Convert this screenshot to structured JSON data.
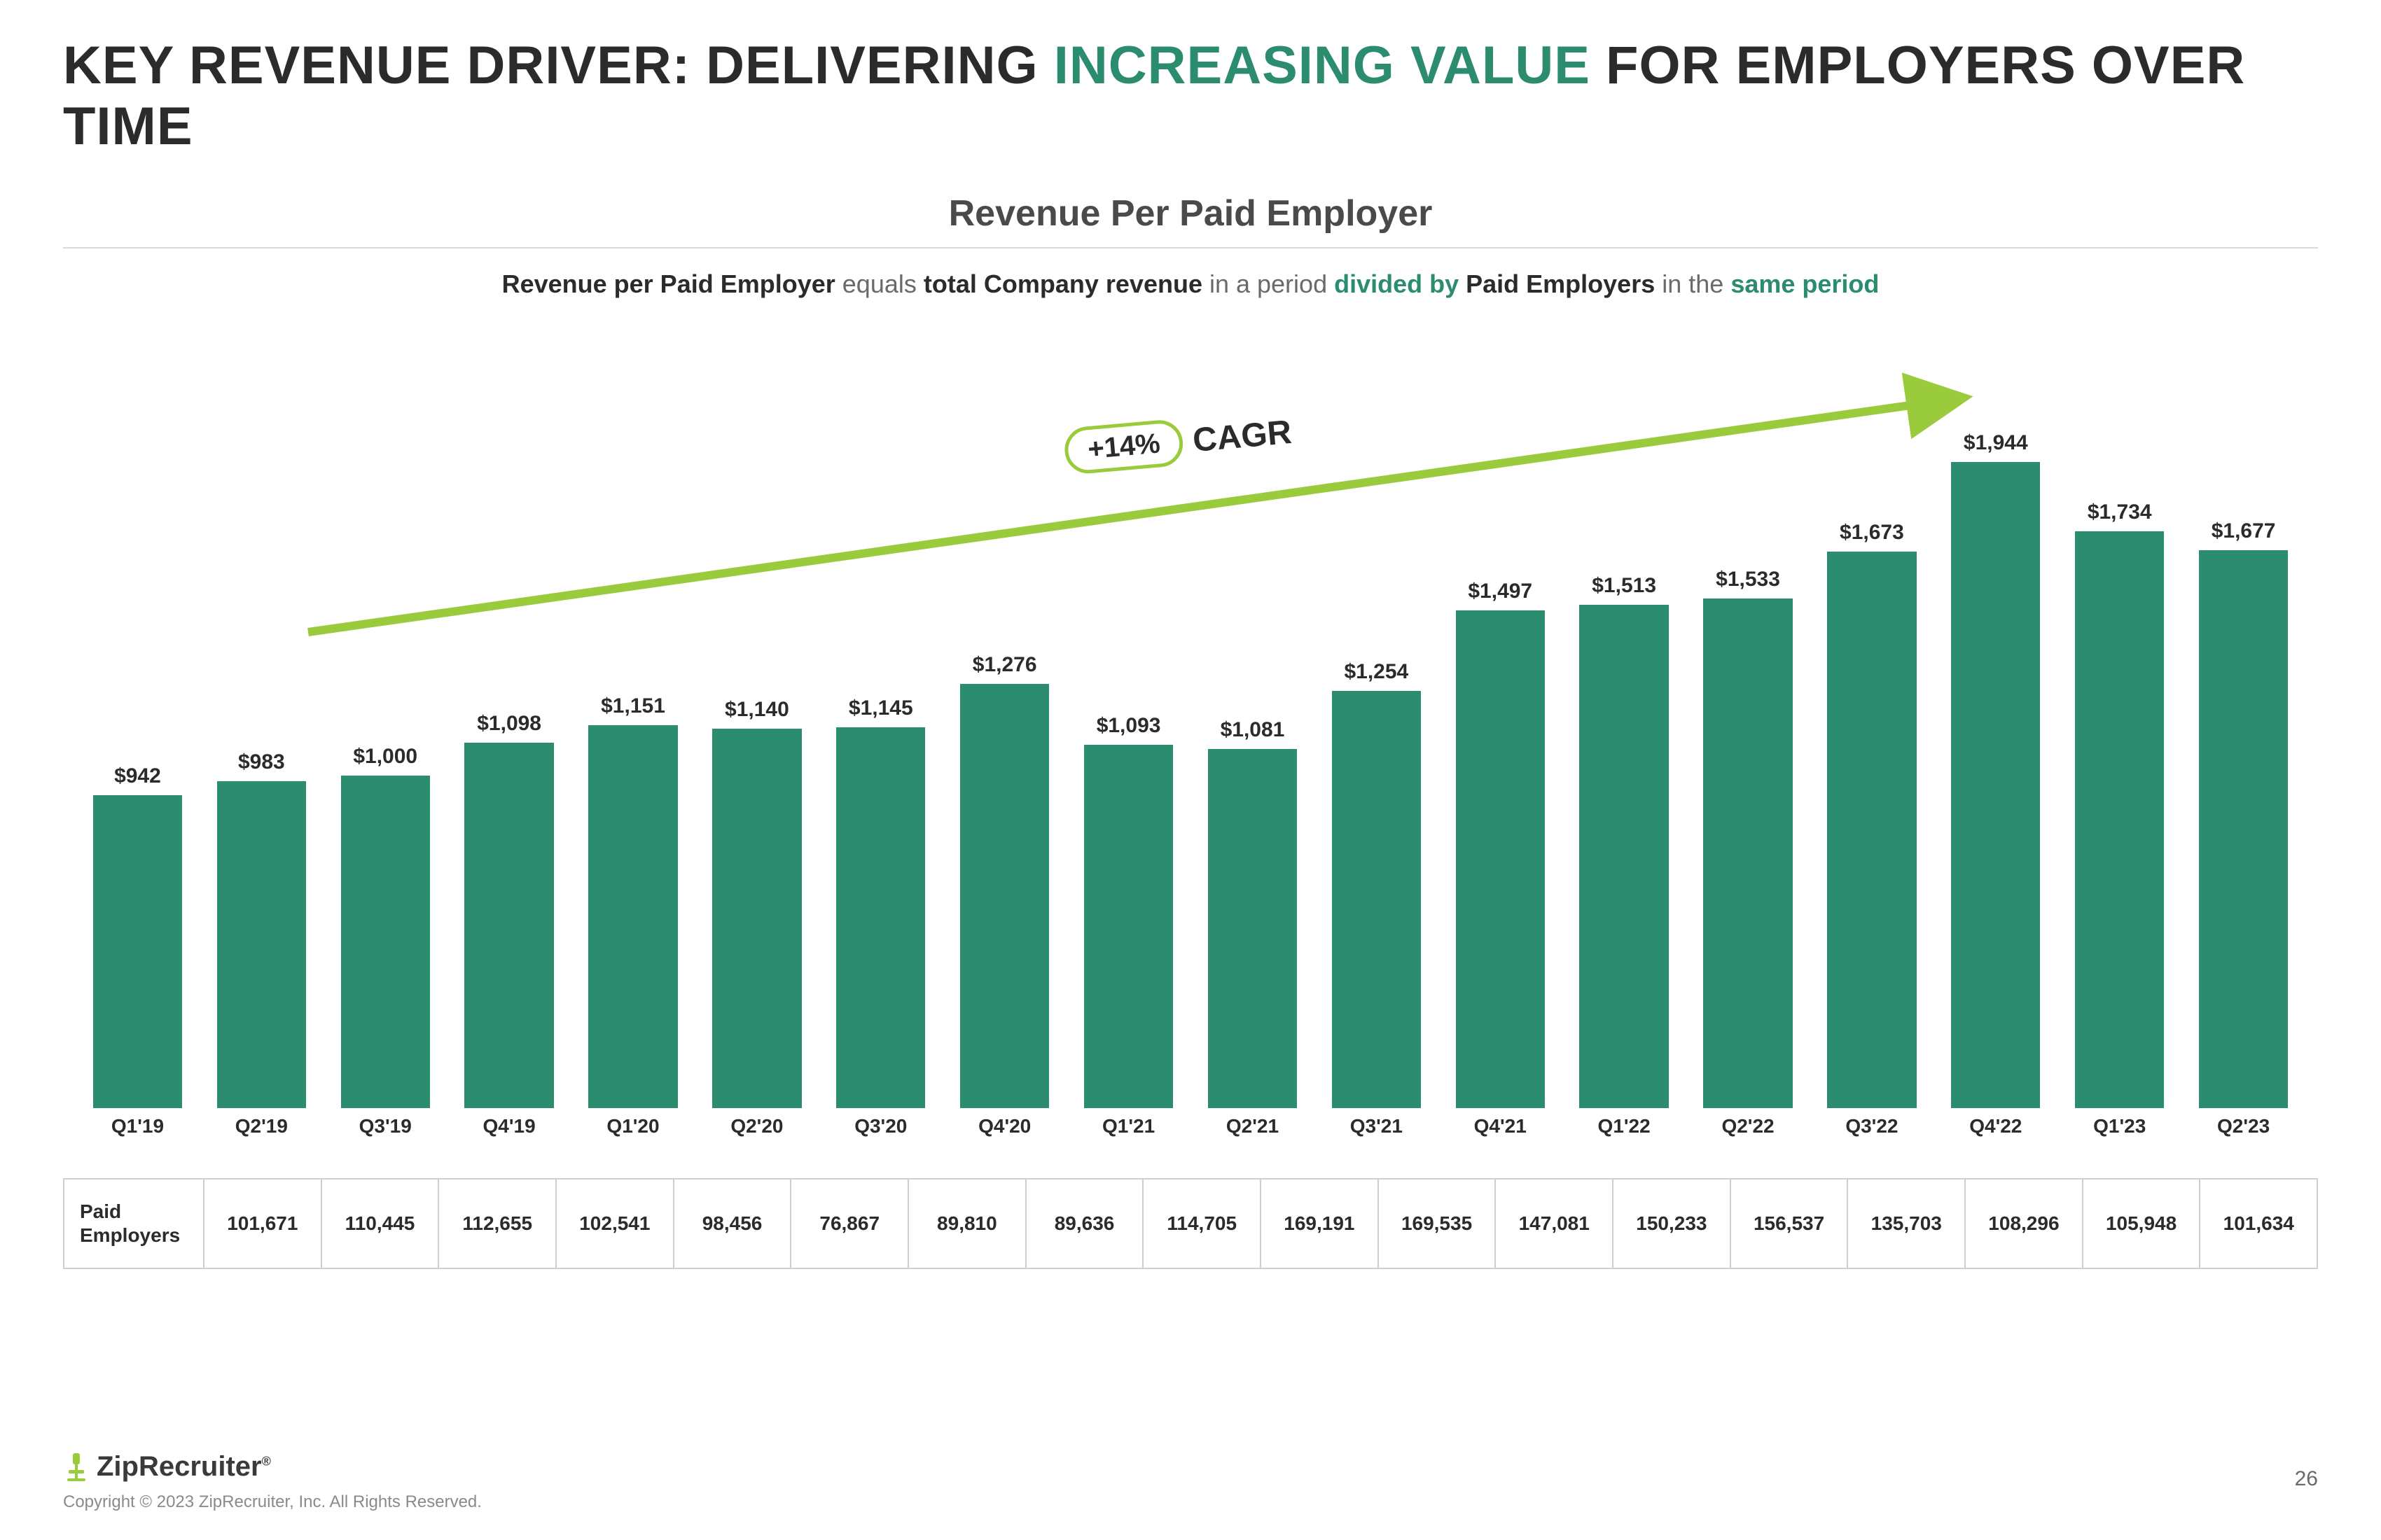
{
  "title": {
    "pre": "KEY REVENUE DRIVER: DELIVERING ",
    "accent": "INCREASING VALUE",
    "post": " FOR EMPLOYERS OVER TIME"
  },
  "subtitle": "Revenue Per Paid Employer",
  "definition": {
    "p1": "Revenue per Paid Employer ",
    "p2": "equals ",
    "p3": "total Company revenue ",
    "p4": "in a period ",
    "p5": "divided by",
    "p6": " Paid Employers ",
    "p7": "in the ",
    "p8": "same period"
  },
  "cagr": {
    "value": "+14%",
    "label": "CAGR"
  },
  "chart": {
    "type": "bar",
    "bar_color": "#2c8c70",
    "arrow_color": "#9acb3c",
    "value_fontsize": 30,
    "label_fontsize": 28,
    "y_max": 2000,
    "categories": [
      "Q1'19",
      "Q2'19",
      "Q3'19",
      "Q4'19",
      "Q1'20",
      "Q2'20",
      "Q3'20",
      "Q4'20",
      "Q1'21",
      "Q2'21",
      "Q3'21",
      "Q4'21",
      "Q1'22",
      "Q2'22",
      "Q3'22",
      "Q4'22",
      "Q1'23",
      "Q2'23"
    ],
    "values": [
      942,
      983,
      1000,
      1098,
      1151,
      1140,
      1145,
      1276,
      1093,
      1081,
      1254,
      1497,
      1513,
      1533,
      1673,
      1944,
      1734,
      1677
    ],
    "value_labels": [
      "$942",
      "$983",
      "$1,000",
      "$1,098",
      "$1,151",
      "$1,140",
      "$1,145",
      "$1,276",
      "$1,093",
      "$1,081",
      "$1,254",
      "$1,497",
      "$1,513",
      "$1,533",
      "$1,673",
      "$1,944",
      "$1,734",
      "$1,677"
    ]
  },
  "paid_employers": {
    "header": "Paid Employers",
    "values": [
      "101,671",
      "110,445",
      "112,655",
      "102,541",
      "98,456",
      "76,867",
      "89,810",
      "89,636",
      "114,705",
      "169,191",
      "169,535",
      "147,081",
      "150,233",
      "156,537",
      "135,703",
      "108,296",
      "105,948",
      "101,634"
    ]
  },
  "footer": {
    "brand": "ZipRecruiter",
    "copyright": "Copyright © 2023 ZipRecruiter, Inc. All Rights Reserved.",
    "page": "26"
  },
  "colors": {
    "accent_green": "#2c8c70",
    "lime": "#9acb3c",
    "text": "#2b2b2b",
    "muted": "#6a6a6a",
    "border": "#cfcfcf",
    "background": "#ffffff"
  }
}
